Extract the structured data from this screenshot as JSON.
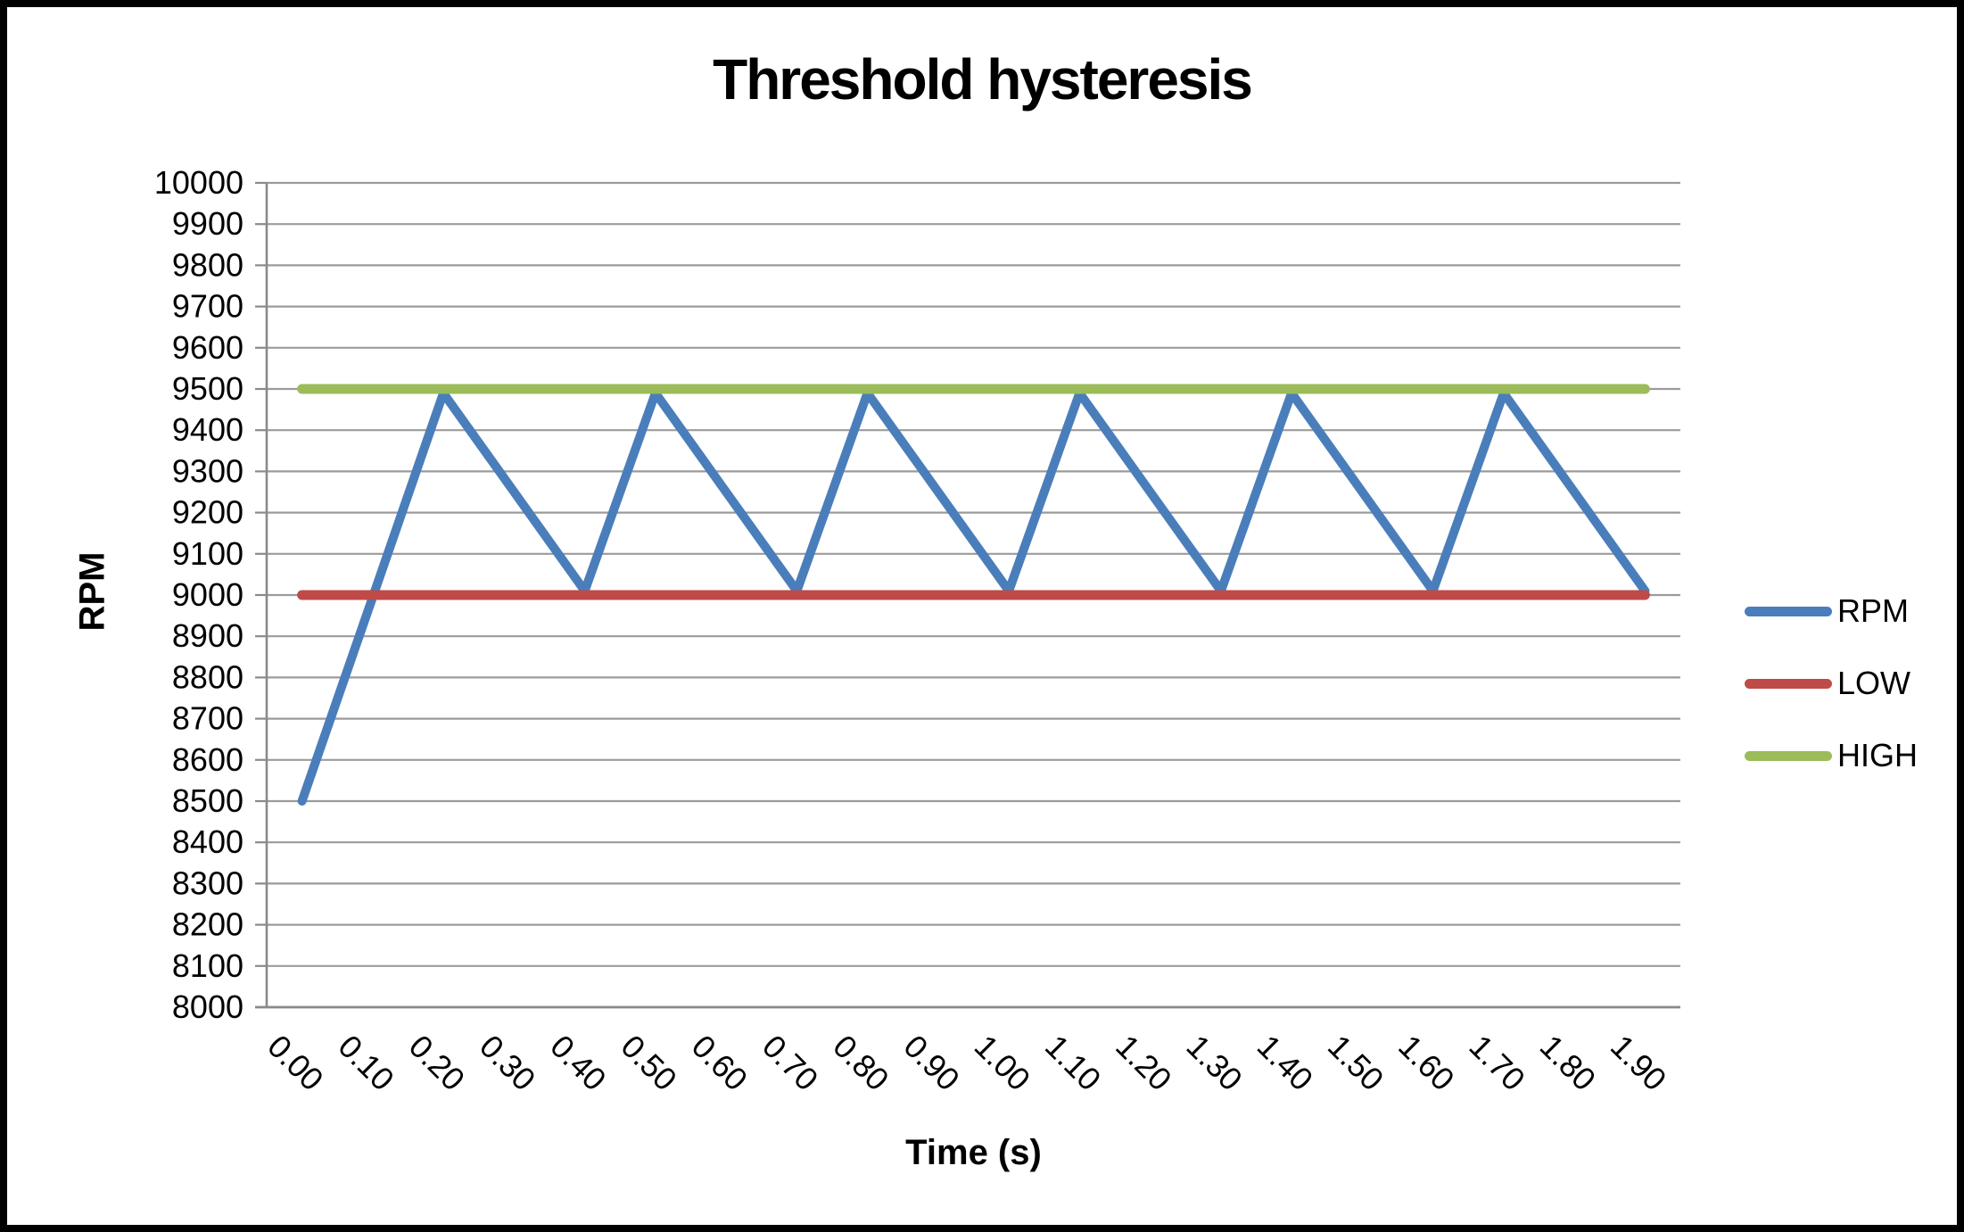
{
  "page": {
    "title": "Threshold hysteresis"
  },
  "axes": {
    "y": {
      "label": "RPM",
      "min": 8000,
      "max": 10000,
      "step": 100,
      "tick_labels": [
        "10000",
        "9900",
        "9800",
        "9700",
        "9600",
        "9500",
        "9400",
        "9300",
        "9200",
        "9100",
        "9000",
        "8900",
        "8800",
        "8700",
        "8600",
        "8500",
        "8400",
        "8300",
        "8200",
        "8100",
        "8000"
      ]
    },
    "x": {
      "label": "Time (s)",
      "tick_labels": [
        "0.00",
        "0.10",
        "0.20",
        "0.30",
        "0.40",
        "0.50",
        "0.60",
        "0.70",
        "0.80",
        "0.90",
        "1.00",
        "1.10",
        "1.20",
        "1.30",
        "1.40",
        "1.50",
        "1.60",
        "1.70",
        "1.80",
        "1.90"
      ]
    }
  },
  "legend": {
    "items": [
      {
        "label": "RPM",
        "color": "#4A7EBB"
      },
      {
        "label": "LOW",
        "color": "#BE4B48"
      },
      {
        "label": "HIGH",
        "color": "#9CBB59"
      }
    ]
  },
  "chart_data": {
    "type": "line",
    "title": "Threshold hysteresis",
    "xlabel": "Time (s)",
    "ylabel": "RPM",
    "ylim": [
      8000,
      10000
    ],
    "y_tick_step": 100,
    "grid": "horizontal",
    "legend_position": "right",
    "categories": [
      "0.00",
      "0.10",
      "0.20",
      "0.30",
      "0.40",
      "0.50",
      "0.60",
      "0.70",
      "0.80",
      "0.90",
      "1.00",
      "1.10",
      "1.20",
      "1.30",
      "1.40",
      "1.50",
      "1.60",
      "1.70",
      "1.80",
      "1.90"
    ],
    "series": [
      {
        "name": "RPM",
        "color": "#4A7EBB",
        "values": [
          8500,
          8995,
          9490,
          9250,
          9010,
          9490,
          9250,
          9010,
          9490,
          9250,
          9010,
          9490,
          9250,
          9010,
          9490,
          9250,
          9010,
          9490,
          9250,
          9010
        ]
      },
      {
        "name": "LOW",
        "color": "#BE4B48",
        "values": [
          9000,
          9000,
          9000,
          9000,
          9000,
          9000,
          9000,
          9000,
          9000,
          9000,
          9000,
          9000,
          9000,
          9000,
          9000,
          9000,
          9000,
          9000,
          9000,
          9000
        ]
      },
      {
        "name": "HIGH",
        "color": "#9CBB59",
        "values": [
          9500,
          9500,
          9500,
          9500,
          9500,
          9500,
          9500,
          9500,
          9500,
          9500,
          9500,
          9500,
          9500,
          9500,
          9500,
          9500,
          9500,
          9500,
          9500,
          9500
        ]
      }
    ]
  }
}
